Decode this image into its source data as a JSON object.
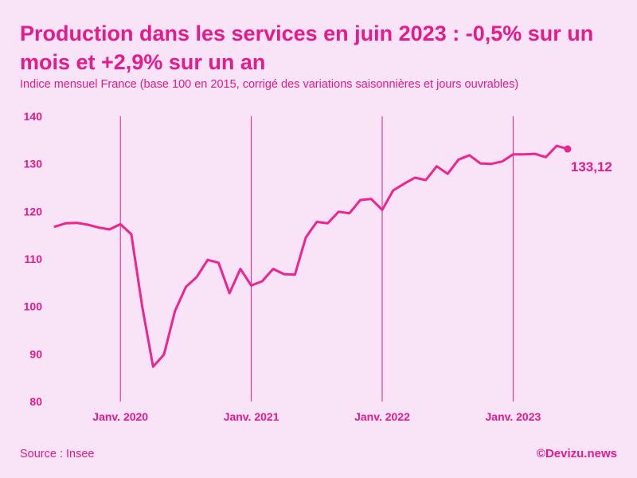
{
  "chart_data": {
    "type": "line",
    "title": "Production dans les services en juin 2023 : -0,5% sur un mois et +2,9% sur un an",
    "subtitle": "Indice mensuel France (base 100 en 2015, corrigé des variations saisonnières et jours ouvrables)",
    "xlabel": "",
    "ylabel": "",
    "ylim": [
      80,
      140
    ],
    "yticks": [
      80,
      90,
      100,
      110,
      120,
      130,
      140
    ],
    "ytick_labels": [
      "80",
      "90",
      "100",
      "110",
      "120",
      "130",
      "140"
    ],
    "x_start": "2019-07",
    "x_end": "2023-06",
    "xtick_labels": [
      "Janv. 2020",
      "Janv. 2021",
      "Janv. 2022",
      "Janv. 2023"
    ],
    "xtick_month_index": [
      6,
      18,
      30,
      42
    ],
    "grid": "vertical lines at January",
    "series": [
      {
        "name": "Production dans les services",
        "color": "#f0238f",
        "values": [
          116.8,
          117.5,
          117.6,
          117.2,
          116.6,
          116.2,
          117.3,
          115.2,
          100.0,
          87.3,
          89.9,
          99.0,
          104.1,
          106.2,
          109.8,
          109.2,
          102.8,
          107.9,
          104.4,
          105.3,
          107.9,
          106.8,
          106.7,
          114.5,
          117.8,
          117.5,
          119.9,
          119.6,
          122.4,
          122.6,
          120.3,
          124.4,
          125.8,
          127.1,
          126.6,
          129.5,
          127.9,
          130.9,
          131.8,
          130.1,
          130.0,
          130.5,
          132.0,
          132.0,
          132.1,
          131.4,
          133.8,
          133.12
        ]
      }
    ],
    "end_label": "133,12"
  },
  "footer": {
    "source": "Source : Insee",
    "brand": "©Devizu.news"
  }
}
